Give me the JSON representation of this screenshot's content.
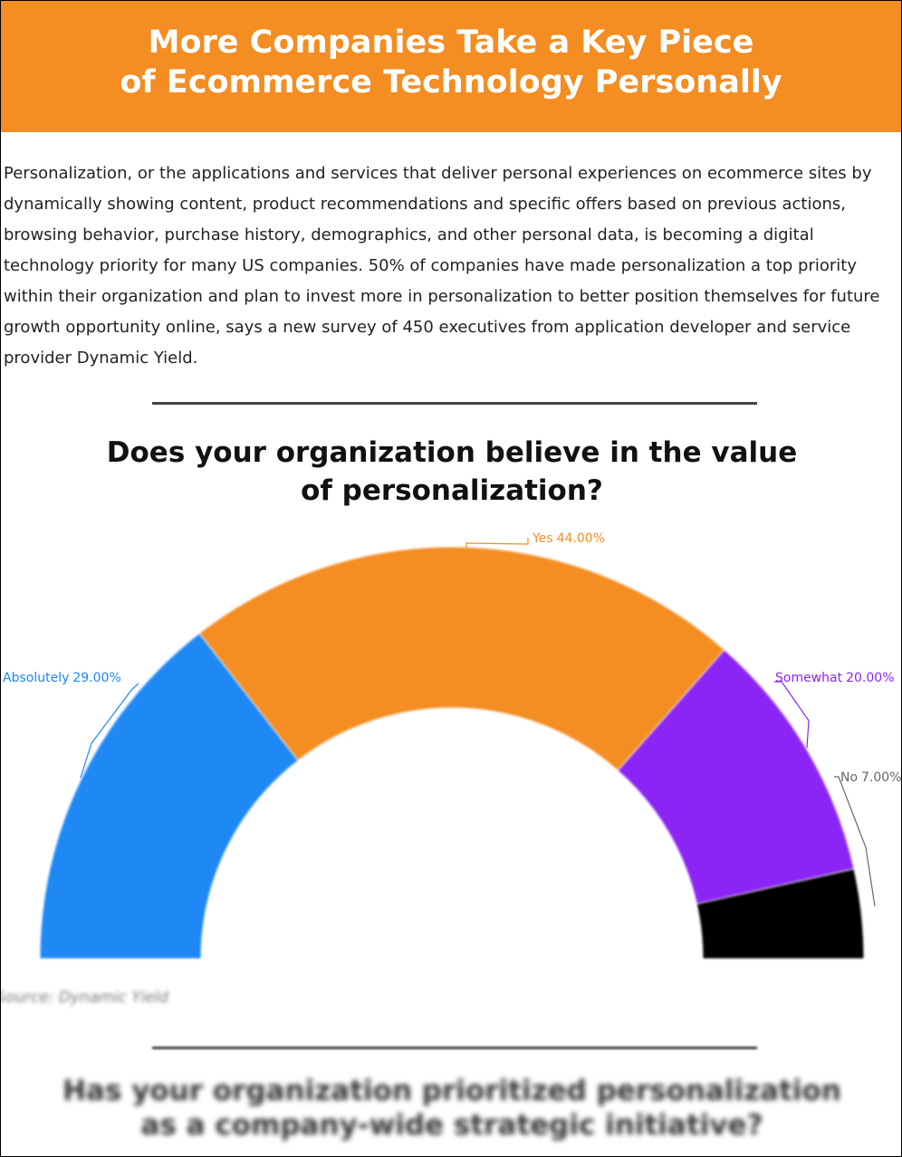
{
  "header": {
    "title_lines": [
      "More Companies Take a Key Piece",
      "of Ecommerce Technology Personally"
    ]
  },
  "intro": "Personalization, or the applications and services that deliver personal experiences on ecommerce sites by dynamically showing content, product recommendations and specific offers based on previous actions, browsing behavior, purchase history, demographics, and other personal data, is becoming a digital technology priority for many US companies. 50% of companies have made personalization a top priority within their organization and plan to invest more in personalization to better position themselves for future growth opportunity online, says a new survey of 450 executives from application developer and service provider Dynamic Yield.",
  "chart_data": {
    "type": "semi-donut",
    "title": "Does your organization believe in the value of personalization?",
    "categories": [
      "Absolutely",
      "Yes",
      "Somewhat",
      "No"
    ],
    "values": [
      29,
      44,
      20,
      7
    ],
    "value_labels": [
      "29.00%",
      "44.00%",
      "20.00%",
      "7.00%"
    ],
    "colors": [
      "#1e88f5",
      "#f48d22",
      "#8b24f5",
      "#000000"
    ],
    "source": "Source: Dynamic Yield"
  },
  "next_question": "Has your organization prioritized personalization as a company-wide strategic initiative?"
}
